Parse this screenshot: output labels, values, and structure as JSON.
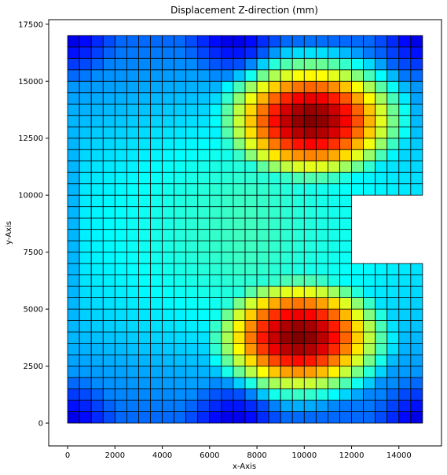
{
  "chart_data": {
    "type": "heatmap",
    "title": "Displacement Z-direction (mm)",
    "xlabel": "x-Axis",
    "ylabel": "y-Axis",
    "xlim": [
      -800,
      15800
    ],
    "ylim": [
      -1000,
      17700
    ],
    "xticks": [
      0,
      2000,
      4000,
      6000,
      8000,
      10000,
      12000,
      14000
    ],
    "yticks": [
      0,
      2500,
      5000,
      7500,
      10000,
      12500,
      15000,
      17500
    ],
    "mesh": {
      "element_size": 500,
      "outline": [
        [
          0,
          0
        ],
        [
          15000,
          0
        ],
        [
          15000,
          7000
        ],
        [
          12000,
          7000
        ],
        [
          12000,
          10000
        ],
        [
          15000,
          10000
        ],
        [
          15000,
          17000
        ],
        [
          0,
          17000
        ]
      ],
      "cutout": {
        "x": [
          12000,
          15000
        ],
        "y": [
          7000,
          10000
        ]
      }
    },
    "field": {
      "colormap": "jet",
      "peaks": [
        {
          "x": 9800,
          "y": 3800,
          "rx": 3800,
          "ry": 2700,
          "amp": 1.0
        },
        {
          "x": 10300,
          "y": 13300,
          "rx": 4000,
          "ry": 2800,
          "amp": 1.0
        }
      ],
      "boundary_value_x0": 0.22,
      "corner_value": 0.0
    },
    "grid": false,
    "legend": "none"
  }
}
